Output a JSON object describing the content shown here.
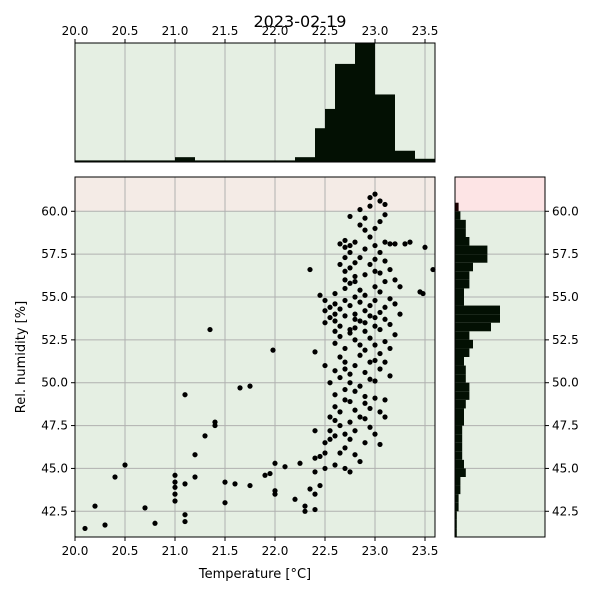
{
  "chart_data": {
    "type": "scatter",
    "title": "2023-02-19",
    "xlabel": "Temperature [°C]",
    "ylabel": "Rel. humidity [%]",
    "xlim": [
      20.0,
      23.6
    ],
    "ylim": [
      41.0,
      62.0
    ],
    "x_ticks": [
      "20.0",
      "20.5",
      "21.0",
      "21.5",
      "22.0",
      "22.5",
      "23.0",
      "23.5"
    ],
    "x_tick_values": [
      20.0,
      20.5,
      21.0,
      21.5,
      22.0,
      22.5,
      23.0,
      23.5
    ],
    "y_ticks": [
      "42.5",
      "45.0",
      "47.5",
      "50.0",
      "52.5",
      "55.0",
      "57.5",
      "60.0"
    ],
    "y_tick_values": [
      42.5,
      45.0,
      47.5,
      50.0,
      52.5,
      55.0,
      57.5,
      60.0
    ],
    "grid": true,
    "bands": [
      {
        "range": [
          41.0,
          60.0
        ],
        "color": "#e5efe3"
      },
      {
        "range": [
          60.0,
          62.0
        ],
        "color": "#f4ebe6"
      }
    ],
    "right_hist_bands": [
      {
        "range": [
          41.0,
          60.0
        ],
        "color": "#e5efe3"
      },
      {
        "range": [
          60.0,
          62.0
        ],
        "color": "#fde4e5"
      }
    ],
    "top_hist_background": "#e5efe3",
    "point_color": "#000000",
    "hist_color": "#031003",
    "top_histogram": {
      "bin_edges": [
        20.0,
        20.2,
        20.4,
        20.6,
        20.8,
        21.0,
        21.2,
        21.4,
        21.6,
        21.8,
        22.0,
        22.2,
        22.4,
        22.5,
        22.6,
        22.8,
        23.0,
        23.2,
        23.4,
        23.6
      ],
      "counts": [
        1,
        1,
        1,
        1,
        1,
        3,
        1,
        1,
        1,
        1,
        1,
        3,
        21,
        33,
        61,
        74,
        42,
        7,
        2
      ]
    },
    "right_histogram": {
      "bin_edges": [
        41.0,
        41.5,
        42.0,
        42.5,
        43.0,
        43.5,
        44.0,
        44.5,
        45.0,
        45.5,
        46.0,
        46.5,
        47.0,
        47.5,
        48.0,
        48.5,
        49.0,
        49.5,
        50.0,
        50.5,
        51.0,
        51.5,
        52.0,
        52.5,
        53.0,
        53.5,
        54.0,
        54.5,
        55.0,
        55.5,
        56.0,
        56.5,
        57.0,
        57.5,
        58.0,
        58.5,
        59.0,
        59.5,
        60.0,
        60.5
      ],
      "counts": [
        1,
        1,
        1,
        2,
        2,
        3,
        3,
        6,
        5,
        4,
        4,
        4,
        4,
        5,
        5,
        6,
        8,
        8,
        6,
        6,
        5,
        8,
        10,
        8,
        20,
        25,
        25,
        5,
        5,
        8,
        8,
        10,
        18,
        18,
        8,
        6,
        6,
        3,
        2
      ]
    },
    "points": [
      [
        20.1,
        41.5
      ],
      [
        20.2,
        42.8
      ],
      [
        20.3,
        41.7
      ],
      [
        20.4,
        44.5
      ],
      [
        20.5,
        45.2
      ],
      [
        20.7,
        42.7
      ],
      [
        20.8,
        41.8
      ],
      [
        21.0,
        43.1
      ],
      [
        21.0,
        43.5
      ],
      [
        21.0,
        43.9
      ],
      [
        21.0,
        44.2
      ],
      [
        21.0,
        44.6
      ],
      [
        21.1,
        41.9
      ],
      [
        21.1,
        42.3
      ],
      [
        21.1,
        44.1
      ],
      [
        21.1,
        49.3
      ],
      [
        21.2,
        44.5
      ],
      [
        21.2,
        45.8
      ],
      [
        21.3,
        46.9
      ],
      [
        21.4,
        47.5
      ],
      [
        21.4,
        47.7
      ],
      [
        21.35,
        53.1
      ],
      [
        21.5,
        43.0
      ],
      [
        21.5,
        44.2
      ],
      [
        21.6,
        44.1
      ],
      [
        21.65,
        49.7
      ],
      [
        21.75,
        49.8
      ],
      [
        21.75,
        44.0
      ],
      [
        21.9,
        44.6
      ],
      [
        21.95,
        44.7
      ],
      [
        22.0,
        43.5
      ],
      [
        22.0,
        43.7
      ],
      [
        22.0,
        45.3
      ],
      [
        21.98,
        51.9
      ],
      [
        22.1,
        45.1
      ],
      [
        22.2,
        43.2
      ],
      [
        22.25,
        45.3
      ],
      [
        22.3,
        42.8
      ],
      [
        22.3,
        42.5
      ],
      [
        22.35,
        56.6
      ],
      [
        22.4,
        42.6
      ],
      [
        22.4,
        43.5
      ],
      [
        22.4,
        44.8
      ],
      [
        22.4,
        45.6
      ],
      [
        22.4,
        47.2
      ],
      [
        22.4,
        51.8
      ],
      [
        22.45,
        55.1
      ],
      [
        22.45,
        44.0
      ],
      [
        22.5,
        45.0
      ],
      [
        22.5,
        45.9
      ],
      [
        22.5,
        46.5
      ],
      [
        22.5,
        53.5
      ],
      [
        22.5,
        54.2
      ],
      [
        22.5,
        54.8
      ],
      [
        22.55,
        46.7
      ],
      [
        22.55,
        47.2
      ],
      [
        22.55,
        48.0
      ],
      [
        22.55,
        53.8
      ],
      [
        22.55,
        54.4
      ],
      [
        22.6,
        45.2
      ],
      [
        22.6,
        46.9
      ],
      [
        22.6,
        47.8
      ],
      [
        22.6,
        48.6
      ],
      [
        22.6,
        49.3
      ],
      [
        22.6,
        52.3
      ],
      [
        22.6,
        53.0
      ],
      [
        22.6,
        53.6
      ],
      [
        22.6,
        54.0
      ],
      [
        22.6,
        54.6
      ],
      [
        22.6,
        55.2
      ],
      [
        22.65,
        45.9
      ],
      [
        22.65,
        47.5
      ],
      [
        22.65,
        48.3
      ],
      [
        22.65,
        50.3
      ],
      [
        22.65,
        51.5
      ],
      [
        22.65,
        52.7
      ],
      [
        22.65,
        53.3
      ],
      [
        22.65,
        54.3
      ],
      [
        22.65,
        58.1
      ],
      [
        22.7,
        45.0
      ],
      [
        22.7,
        46.2
      ],
      [
        22.7,
        47.0
      ],
      [
        22.7,
        49.0
      ],
      [
        22.7,
        50.8
      ],
      [
        22.7,
        51.2
      ],
      [
        22.7,
        52.0
      ],
      [
        22.7,
        53.9
      ],
      [
        22.7,
        55.5
      ],
      [
        22.7,
        56.0
      ],
      [
        22.7,
        56.5
      ],
      [
        22.7,
        57.3
      ],
      [
        22.7,
        57.9
      ],
      [
        22.7,
        58.3
      ],
      [
        22.75,
        44.8
      ],
      [
        22.75,
        46.7
      ],
      [
        22.75,
        47.7
      ],
      [
        22.75,
        48.9
      ],
      [
        22.75,
        50.0
      ],
      [
        22.75,
        50.5
      ],
      [
        22.75,
        52.9
      ],
      [
        22.75,
        54.5
      ],
      [
        22.75,
        55.8
      ],
      [
        22.75,
        56.7
      ],
      [
        22.75,
        57.6
      ],
      [
        22.75,
        58.0
      ],
      [
        22.8,
        45.8
      ],
      [
        22.8,
        47.2
      ],
      [
        22.8,
        48.4
      ],
      [
        22.8,
        49.5
      ],
      [
        22.8,
        51.0
      ],
      [
        22.8,
        52.5
      ],
      [
        22.8,
        53.2
      ],
      [
        22.8,
        54.0
      ],
      [
        22.8,
        55.0
      ],
      [
        22.8,
        56.2
      ],
      [
        22.8,
        57.0
      ],
      [
        22.8,
        58.2
      ],
      [
        22.85,
        45.4
      ],
      [
        22.85,
        48.0
      ],
      [
        22.85,
        49.8
      ],
      [
        22.85,
        51.6
      ],
      [
        22.85,
        53.6
      ],
      [
        22.85,
        54.7
      ],
      [
        22.85,
        55.4
      ],
      [
        22.85,
        57.3
      ],
      [
        22.85,
        59.2
      ],
      [
        22.9,
        46.5
      ],
      [
        22.9,
        48.8
      ],
      [
        22.9,
        49.2
      ],
      [
        22.9,
        50.6
      ],
      [
        22.9,
        51.9
      ],
      [
        22.9,
        53.0
      ],
      [
        22.9,
        53.5
      ],
      [
        22.9,
        54.2
      ],
      [
        22.9,
        55.1
      ],
      [
        22.9,
        56.3
      ],
      [
        22.9,
        57.8
      ],
      [
        22.9,
        59.6
      ],
      [
        22.95,
        47.4
      ],
      [
        22.95,
        48.5
      ],
      [
        22.95,
        50.2
      ],
      [
        22.95,
        52.6
      ],
      [
        22.95,
        53.9
      ],
      [
        22.95,
        54.5
      ],
      [
        22.95,
        56.9
      ],
      [
        22.95,
        58.5
      ],
      [
        22.95,
        60.3
      ],
      [
        22.95,
        60.8
      ],
      [
        23.0,
        47.0
      ],
      [
        23.0,
        49.1
      ],
      [
        23.0,
        51.3
      ],
      [
        23.0,
        52.2
      ],
      [
        23.0,
        53.3
      ],
      [
        23.0,
        53.8
      ],
      [
        23.0,
        54.8
      ],
      [
        23.0,
        55.6
      ],
      [
        23.0,
        57.2
      ],
      [
        23.0,
        58.0
      ],
      [
        23.0,
        59.0
      ],
      [
        23.0,
        61.0
      ],
      [
        23.05,
        48.3
      ],
      [
        23.05,
        50.8
      ],
      [
        23.05,
        51.7
      ],
      [
        23.05,
        53.1
      ],
      [
        23.05,
        54.1
      ],
      [
        23.05,
        55.3
      ],
      [
        23.05,
        56.4
      ],
      [
        23.05,
        57.6
      ],
      [
        23.05,
        59.4
      ],
      [
        23.05,
        60.6
      ],
      [
        23.1,
        49.0
      ],
      [
        23.1,
        51.2
      ],
      [
        23.1,
        52.4
      ],
      [
        23.1,
        53.7
      ],
      [
        23.1,
        54.4
      ],
      [
        23.1,
        55.9
      ],
      [
        23.1,
        57.1
      ],
      [
        23.1,
        58.2
      ],
      [
        23.1,
        59.8
      ],
      [
        23.15,
        50.4
      ],
      [
        23.15,
        52.0
      ],
      [
        23.15,
        53.4
      ],
      [
        23.15,
        54.9
      ],
      [
        23.15,
        56.6
      ],
      [
        23.15,
        58.1
      ],
      [
        23.2,
        52.8
      ],
      [
        23.2,
        54.6
      ],
      [
        23.2,
        56.0
      ],
      [
        23.2,
        58.1
      ],
      [
        23.25,
        54.0
      ],
      [
        23.25,
        55.6
      ],
      [
        23.3,
        58.1
      ],
      [
        23.35,
        58.2
      ],
      [
        23.45,
        55.3
      ],
      [
        23.48,
        55.2
      ],
      [
        23.5,
        57.9
      ],
      [
        23.58,
        56.6
      ],
      [
        22.45,
        45.7
      ],
      [
        22.35,
        43.8
      ],
      [
        22.5,
        51.0
      ],
      [
        22.55,
        50.0
      ],
      [
        22.6,
        50.7
      ],
      [
        22.7,
        49.6
      ],
      [
        22.75,
        53.1
      ],
      [
        22.8,
        55.9
      ],
      [
        22.85,
        52.2
      ],
      [
        22.9,
        47.9
      ],
      [
        22.95,
        51.2
      ],
      [
        23.0,
        50.1
      ],
      [
        23.05,
        46.4
      ],
      [
        23.1,
        48.0
      ],
      [
        22.65,
        56.9
      ],
      [
        22.7,
        54.8
      ],
      [
        22.8,
        53.7
      ],
      [
        22.9,
        58.9
      ],
      [
        23.0,
        56.5
      ],
      [
        22.85,
        60.1
      ],
      [
        23.1,
        60.4
      ],
      [
        22.75,
        59.7
      ]
    ]
  }
}
